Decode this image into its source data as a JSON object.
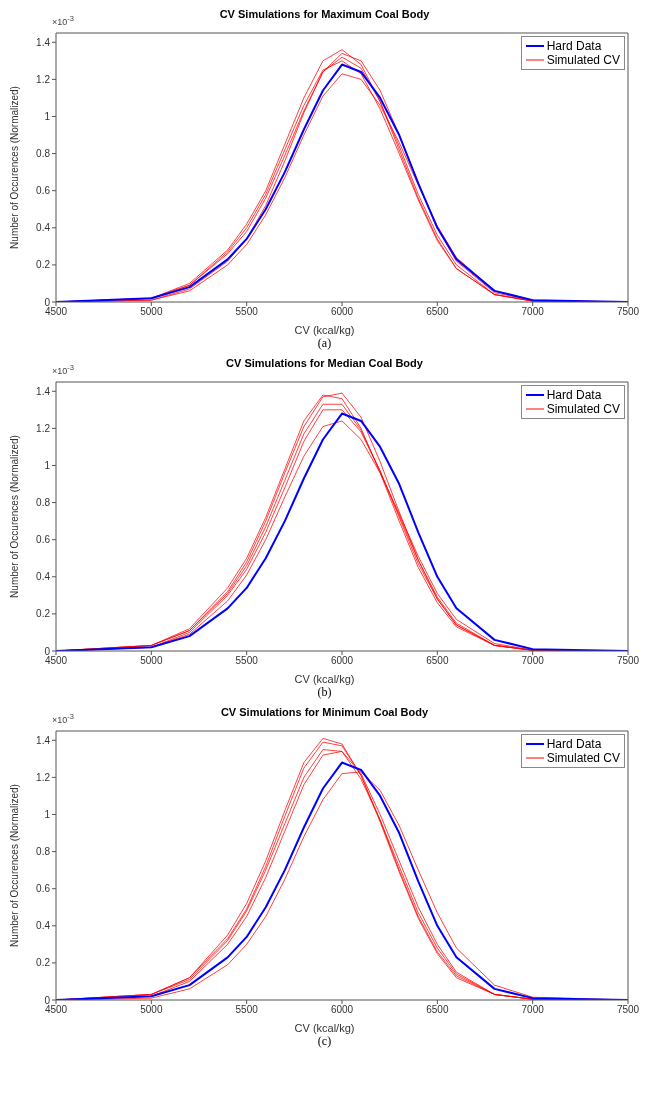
{
  "chart_data": [
    {
      "type": "line",
      "title": "CV Simulations for Maximum Coal Body",
      "xlabel": "CV (kcal/kg)",
      "ylabel": "Number of Occurences (Normalized)",
      "annotations": [
        "×10$^{-3}$",
        "(a)"
      ],
      "x": [
        4500,
        5000,
        5200,
        5400,
        5500,
        5600,
        5700,
        5800,
        5900,
        6000,
        6100,
        6200,
        6300,
        6400,
        6500,
        6600,
        6800,
        7000,
        7500
      ],
      "xlim": [
        4500,
        7500
      ],
      "xticks": [
        4500,
        5000,
        5500,
        6000,
        6500,
        7000,
        7500
      ],
      "ylim": [
        0,
        1.45
      ],
      "yticks": [
        0,
        0.2,
        0.4,
        0.6,
        0.8,
        1,
        1.2,
        1.4
      ],
      "grid": false,
      "legend": "top right",
      "series": [
        {
          "color": "#ff0000",
          "values": [
            0,
            0.02,
            0.1,
            0.28,
            0.42,
            0.6,
            0.85,
            1.1,
            1.3,
            1.36,
            1.28,
            1.08,
            0.82,
            0.56,
            0.34,
            0.18,
            0.04,
            0.005,
            0
          ]
        },
        {
          "color": "#ff0000",
          "values": [
            0,
            0.02,
            0.09,
            0.26,
            0.38,
            0.56,
            0.79,
            1.03,
            1.24,
            1.32,
            1.26,
            1.08,
            0.84,
            0.58,
            0.36,
            0.2,
            0.04,
            0.005,
            0
          ]
        },
        {
          "color": "#ff0000",
          "values": [
            0,
            0.01,
            0.06,
            0.2,
            0.31,
            0.47,
            0.67,
            0.9,
            1.11,
            1.23,
            1.2,
            1.06,
            0.86,
            0.63,
            0.41,
            0.24,
            0.06,
            0.01,
            0
          ]
        },
        {
          "color": "#ff0000",
          "values": [
            0,
            0.02,
            0.09,
            0.27,
            0.4,
            0.58,
            0.82,
            1.06,
            1.25,
            1.3,
            1.23,
            1.04,
            0.8,
            0.55,
            0.33,
            0.18,
            0.04,
            0.005,
            0
          ]
        },
        {
          "name": "Simulated CV",
          "color": "#ff0000",
          "values": [
            0,
            0.01,
            0.07,
            0.22,
            0.34,
            0.52,
            0.76,
            1.02,
            1.24,
            1.34,
            1.3,
            1.14,
            0.9,
            0.64,
            0.4,
            0.22,
            0.05,
            0.008,
            0
          ]
        },
        {
          "name": "Hard Data",
          "color": "#0000ff",
          "values": [
            0,
            0.02,
            0.08,
            0.23,
            0.34,
            0.5,
            0.7,
            0.93,
            1.14,
            1.28,
            1.24,
            1.1,
            0.9,
            0.64,
            0.4,
            0.23,
            0.06,
            0.01,
            0
          ]
        }
      ]
    },
    {
      "type": "line",
      "title": "CV Simulations for Median Coal Body",
      "xlabel": "CV (kcal/kg)",
      "ylabel": "Number of Occurences (Normalized)",
      "annotations": [
        "×10$^{-3}$",
        "(b)"
      ],
      "x": [
        4500,
        5000,
        5200,
        5400,
        5500,
        5600,
        5700,
        5800,
        5900,
        6000,
        6100,
        6200,
        6300,
        6400,
        6500,
        6600,
        6800,
        7000,
        7500
      ],
      "xlim": [
        4500,
        7500
      ],
      "xticks": [
        4500,
        5000,
        5500,
        6000,
        6500,
        7000,
        7500
      ],
      "ylim": [
        0,
        1.45
      ],
      "yticks": [
        0,
        0.2,
        0.4,
        0.6,
        0.8,
        1,
        1.2,
        1.4
      ],
      "grid": false,
      "legend": "top right",
      "series": [
        {
          "color": "#ff0000",
          "values": [
            0,
            0.03,
            0.12,
            0.34,
            0.5,
            0.72,
            0.98,
            1.24,
            1.38,
            1.36,
            1.2,
            0.96,
            0.7,
            0.45,
            0.26,
            0.13,
            0.03,
            0.004,
            0
          ]
        },
        {
          "color": "#ff0000",
          "values": [
            0,
            0.03,
            0.11,
            0.31,
            0.46,
            0.67,
            0.92,
            1.17,
            1.33,
            1.33,
            1.19,
            0.97,
            0.72,
            0.47,
            0.28,
            0.14,
            0.03,
            0.004,
            0
          ]
        },
        {
          "color": "#ff0000",
          "values": [
            0,
            0.02,
            0.09,
            0.27,
            0.41,
            0.6,
            0.83,
            1.05,
            1.21,
            1.24,
            1.14,
            0.96,
            0.74,
            0.51,
            0.31,
            0.17,
            0.04,
            0.005,
            0
          ]
        },
        {
          "color": "#ff0000",
          "values": [
            0,
            0.03,
            0.11,
            0.32,
            0.48,
            0.7,
            0.96,
            1.21,
            1.37,
            1.39,
            1.26,
            1.02,
            0.75,
            0.49,
            0.28,
            0.14,
            0.03,
            0.004,
            0
          ]
        },
        {
          "name": "Simulated CV",
          "color": "#ff0000",
          "values": [
            0,
            0.02,
            0.1,
            0.3,
            0.44,
            0.64,
            0.88,
            1.13,
            1.3,
            1.3,
            1.18,
            0.97,
            0.73,
            0.49,
            0.29,
            0.15,
            0.03,
            0.004,
            0
          ]
        },
        {
          "name": "Hard Data",
          "color": "#0000ff",
          "values": [
            0,
            0.02,
            0.08,
            0.23,
            0.34,
            0.5,
            0.7,
            0.93,
            1.14,
            1.28,
            1.24,
            1.1,
            0.9,
            0.64,
            0.4,
            0.23,
            0.06,
            0.01,
            0
          ]
        }
      ]
    },
    {
      "type": "line",
      "title": "CV Simulations for Minimum Coal Body",
      "xlabel": "CV (kcal/kg)",
      "ylabel": "Number of Occurences (Normalized)",
      "annotations": [
        "×10$^{-3}$",
        "(c)"
      ],
      "x": [
        4500,
        5000,
        5200,
        5400,
        5500,
        5600,
        5700,
        5800,
        5900,
        6000,
        6100,
        6200,
        6300,
        6400,
        6500,
        6600,
        6800,
        7000,
        7500
      ],
      "xlim": [
        4500,
        7500
      ],
      "xticks": [
        4500,
        5000,
        5500,
        6000,
        6500,
        7000,
        7500
      ],
      "ylim": [
        0,
        1.45
      ],
      "yticks": [
        0,
        0.2,
        0.4,
        0.6,
        0.8,
        1,
        1.2,
        1.4
      ],
      "grid": false,
      "legend": "top right",
      "series": [
        {
          "color": "#ff0000",
          "values": [
            0,
            0.03,
            0.12,
            0.35,
            0.52,
            0.75,
            1.02,
            1.28,
            1.41,
            1.38,
            1.21,
            0.96,
            0.69,
            0.44,
            0.25,
            0.12,
            0.03,
            0.004,
            0
          ]
        },
        {
          "color": "#ff0000",
          "values": [
            0,
            0.03,
            0.11,
            0.32,
            0.48,
            0.7,
            0.95,
            1.2,
            1.35,
            1.34,
            1.19,
            0.97,
            0.72,
            0.47,
            0.28,
            0.14,
            0.03,
            0.004,
            0
          ]
        },
        {
          "color": "#ff0000",
          "values": [
            0,
            0.01,
            0.06,
            0.19,
            0.3,
            0.45,
            0.65,
            0.88,
            1.08,
            1.22,
            1.23,
            1.13,
            0.94,
            0.7,
            0.47,
            0.28,
            0.08,
            0.015,
            0
          ]
        },
        {
          "color": "#ff0000",
          "values": [
            0,
            0.02,
            0.1,
            0.3,
            0.45,
            0.66,
            0.91,
            1.16,
            1.32,
            1.34,
            1.22,
            1,
            0.75,
            0.5,
            0.3,
            0.15,
            0.03,
            0.004,
            0
          ]
        },
        {
          "name": "Simulated CV",
          "color": "#ff0000",
          "values": [
            0,
            0.03,
            0.12,
            0.33,
            0.49,
            0.72,
            0.99,
            1.25,
            1.39,
            1.37,
            1.21,
            0.97,
            0.7,
            0.45,
            0.26,
            0.13,
            0.03,
            0.004,
            0
          ]
        },
        {
          "name": "Hard Data",
          "color": "#0000ff",
          "values": [
            0,
            0.02,
            0.08,
            0.23,
            0.34,
            0.5,
            0.7,
            0.93,
            1.14,
            1.28,
            1.24,
            1.1,
            0.9,
            0.64,
            0.4,
            0.23,
            0.06,
            0.01,
            0
          ]
        }
      ]
    }
  ]
}
